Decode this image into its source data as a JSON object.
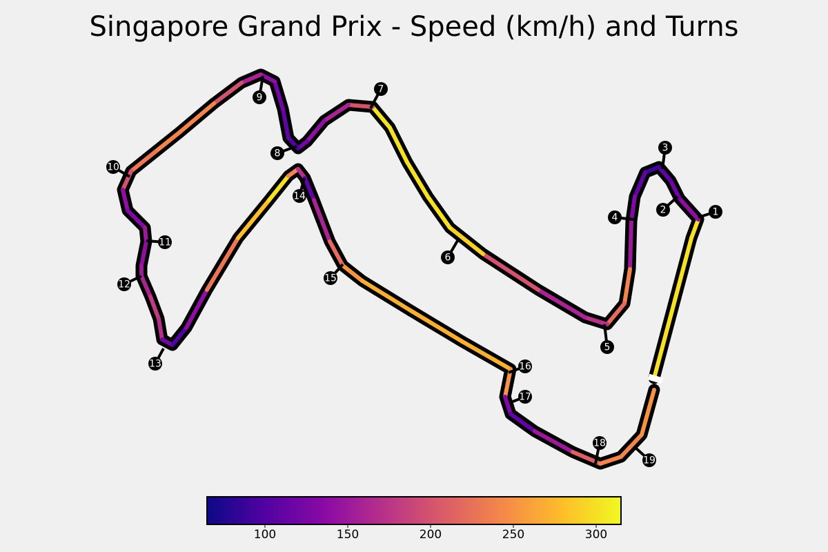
{
  "title": "Singapore Grand Prix - Speed (km/h) and Turns",
  "chart_data": {
    "type": "track-map",
    "title": "Singapore Grand Prix - Speed (km/h) and Turns",
    "colormap": "plasma",
    "colorbar": {
      "range": [
        65,
        315
      ],
      "ticks": [
        100,
        150,
        200,
        250,
        300
      ],
      "tick_labels": [
        "100",
        "150",
        "200",
        "250",
        "300"
      ],
      "stops": [
        "#0d0887",
        "#5302a3",
        "#8b0aa5",
        "#b83289",
        "#db5c68",
        "#f48849",
        "#febd2a",
        "#f0f921"
      ]
    },
    "turns": [
      "1",
      "2",
      "3",
      "4",
      "5",
      "6",
      "7",
      "8",
      "9",
      "10",
      "11",
      "12",
      "13",
      "14",
      "15",
      "16",
      "17",
      "18",
      "19"
    ],
    "track_speed_profile": [
      {
        "segment": "start/finish straight",
        "speed": 300
      },
      {
        "segment": "T1-T3",
        "speed": 130
      },
      {
        "segment": "T4 to T5",
        "speed": 240
      },
      {
        "segment": "T5",
        "speed": 160
      },
      {
        "segment": "T6 straight",
        "speed": 300
      },
      {
        "segment": "T7",
        "speed": 150
      },
      {
        "segment": "T8",
        "speed": 100
      },
      {
        "segment": "T9",
        "speed": 140
      },
      {
        "segment": "T9 to T10",
        "speed": 240
      },
      {
        "segment": "T10-T12",
        "speed": 150
      },
      {
        "segment": "T13",
        "speed": 100
      },
      {
        "segment": "T13 to T14",
        "speed": 290
      },
      {
        "segment": "T14",
        "speed": 110
      },
      {
        "segment": "T15 straight",
        "speed": 270
      },
      {
        "segment": "T16-T17",
        "speed": 130
      },
      {
        "segment": "T18",
        "speed": 240
      },
      {
        "segment": "T19",
        "speed": 250
      }
    ]
  }
}
